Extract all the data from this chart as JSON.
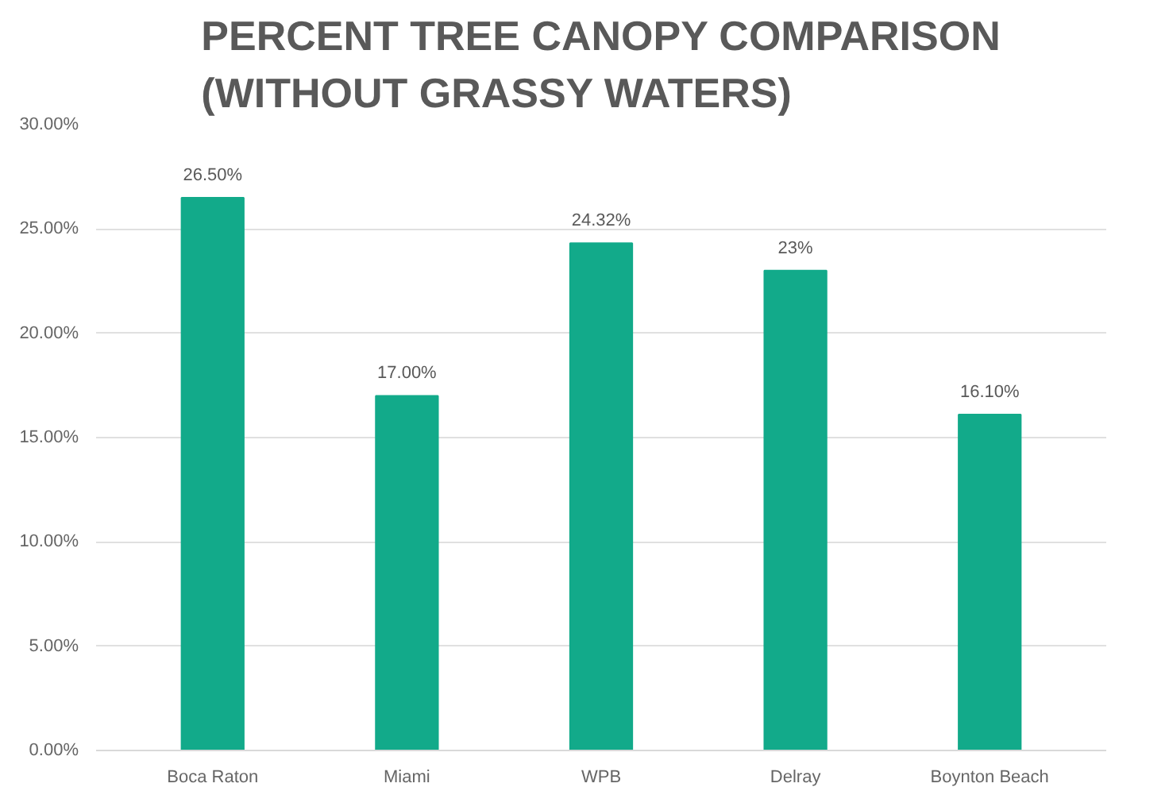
{
  "chart_data": {
    "type": "bar",
    "title": "PERCENT TREE CANOPY COMPARISON\n(WITHOUT GRASSY WATERS)",
    "categories": [
      "Boca Raton",
      "Miami",
      "WPB",
      "Delray",
      "Boynton Beach"
    ],
    "values": [
      26.5,
      17,
      24.32,
      23,
      16.1
    ],
    "value_labels": [
      "26.50%",
      "17.00%",
      "24.32%",
      "23%",
      "16.10%"
    ],
    "color": "#12aa8a",
    "ylim": [
      0,
      30
    ],
    "yticks": [
      {
        "value": 0,
        "label": "0.00%"
      },
      {
        "value": 5,
        "label": "5.00%"
      },
      {
        "value": 10,
        "label": "10.00%"
      },
      {
        "value": 15,
        "label": "15.00%"
      },
      {
        "value": 20,
        "label": "20.00%"
      },
      {
        "value": 25,
        "label": "25.00%"
      },
      {
        "value": 30,
        "label": "30.00%"
      }
    ],
    "grid": "y"
  }
}
